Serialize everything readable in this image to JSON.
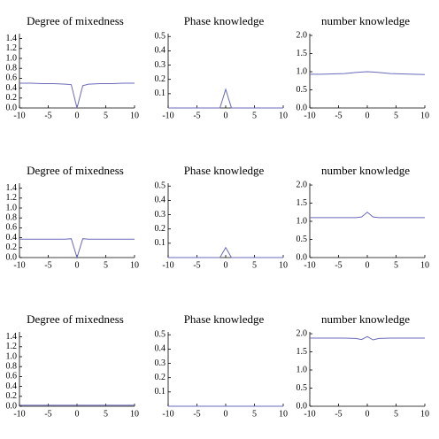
{
  "chart_data": [
    {
      "type": "line",
      "title": "Degree of mixedness",
      "x": [
        -10,
        -8,
        -6,
        -4,
        -2,
        -1,
        0,
        1,
        2,
        4,
        6,
        8,
        10
      ],
      "values": [
        0.5,
        0.5,
        0.49,
        0.49,
        0.48,
        0.47,
        0.0,
        0.45,
        0.48,
        0.49,
        0.49,
        0.5,
        0.5
      ],
      "color": "#6a6ab8",
      "xlim": [
        -10,
        10
      ],
      "ylim": [
        0,
        1.5
      ],
      "xticks": [
        -10,
        -5,
        0,
        5,
        10
      ],
      "yticks": [
        {
          "value": 0,
          "label": "0.0"
        },
        0.2,
        0.4,
        0.6,
        0.8,
        {
          "value": 1,
          "label": "1.0"
        },
        1.2,
        1.4
      ]
    },
    {
      "type": "line",
      "title": "Phase knowledge",
      "x": [
        -10,
        -8,
        -6,
        -4,
        -2,
        -1,
        0,
        1,
        2,
        4,
        6,
        8,
        10
      ],
      "values": [
        0,
        0,
        0,
        0,
        0,
        0,
        0.13,
        0,
        0,
        0,
        0,
        0,
        0
      ],
      "color": "#6a6ab8",
      "xlim": [
        -10,
        10
      ],
      "ylim": [
        0,
        0.52
      ],
      "xticks": [
        -10,
        -5,
        0,
        5,
        10
      ],
      "yticks": [
        0.1,
        0.2,
        0.3,
        0.4,
        0.5
      ]
    },
    {
      "type": "line",
      "title": "number knowledge",
      "x": [
        -10,
        -8,
        -6,
        -4,
        -2,
        -1,
        0,
        1,
        2,
        4,
        6,
        8,
        10
      ],
      "values": [
        0.93,
        0.93,
        0.94,
        0.95,
        0.98,
        0.99,
        1.0,
        0.99,
        0.98,
        0.95,
        0.94,
        0.93,
        0.92
      ],
      "color": "#6a6ab8",
      "xlim": [
        -10,
        10
      ],
      "ylim": [
        0,
        2.05
      ],
      "xticks": [
        -10,
        -5,
        0,
        5,
        10
      ],
      "yticks": [
        {
          "value": 0,
          "label": "0.0"
        },
        0.5,
        {
          "value": 1,
          "label": "1.0"
        },
        1.5,
        {
          "value": 2,
          "label": "2.0"
        }
      ]
    },
    {
      "type": "line",
      "title": "Degree of mixedness",
      "x": [
        -10,
        -8,
        -6,
        -4,
        -2,
        -1,
        0,
        1,
        2,
        4,
        6,
        8,
        10
      ],
      "values": [
        0.37,
        0.37,
        0.37,
        0.37,
        0.37,
        0.38,
        0.0,
        0.38,
        0.37,
        0.37,
        0.37,
        0.37,
        0.37
      ],
      "color": "#6a6ab8",
      "xlim": [
        -10,
        10
      ],
      "ylim": [
        0,
        1.5
      ],
      "xticks": [
        -10,
        -5,
        0,
        5,
        10
      ],
      "yticks": [
        {
          "value": 0,
          "label": "0.0"
        },
        0.2,
        0.4,
        0.6,
        0.8,
        {
          "value": 1,
          "label": "1.0"
        },
        1.2,
        1.4
      ]
    },
    {
      "type": "line",
      "title": "Phase knowledge",
      "x": [
        -10,
        -8,
        -6,
        -4,
        -2,
        -1,
        0,
        1,
        2,
        4,
        6,
        8,
        10
      ],
      "values": [
        0,
        0,
        0,
        0,
        0,
        0,
        0.07,
        0,
        0,
        0,
        0,
        0,
        0
      ],
      "color": "#6a6ab8",
      "xlim": [
        -10,
        10
      ],
      "ylim": [
        0,
        0.52
      ],
      "xticks": [
        -10,
        -5,
        0,
        5,
        10
      ],
      "yticks": [
        0.1,
        0.2,
        0.3,
        0.4,
        0.5
      ]
    },
    {
      "type": "line",
      "title": "number knowledge",
      "x": [
        -10,
        -8,
        -6,
        -4,
        -2,
        -1,
        0,
        1,
        2,
        4,
        6,
        8,
        10
      ],
      "values": [
        1.1,
        1.1,
        1.1,
        1.1,
        1.1,
        1.12,
        1.25,
        1.12,
        1.1,
        1.1,
        1.1,
        1.1,
        1.1
      ],
      "color": "#6a6ab8",
      "xlim": [
        -10,
        10
      ],
      "ylim": [
        0,
        2.05
      ],
      "xticks": [
        -10,
        -5,
        0,
        5,
        10
      ],
      "yticks": [
        {
          "value": 0,
          "label": "0.0"
        },
        0.5,
        {
          "value": 1,
          "label": "1.0"
        },
        1.5,
        {
          "value": 2,
          "label": "2.0"
        }
      ]
    },
    {
      "type": "line",
      "title": "Degree of mixedness",
      "x": [
        -10,
        -8,
        -6,
        -4,
        -2,
        -1,
        0,
        1,
        2,
        4,
        6,
        8,
        10
      ],
      "values": [
        0.02,
        0.02,
        0.02,
        0.02,
        0.02,
        0.02,
        0.02,
        0.02,
        0.02,
        0.02,
        0.02,
        0.02,
        0.02
      ],
      "color": "#6a6ab8",
      "xlim": [
        -10,
        10
      ],
      "ylim": [
        0,
        1.5
      ],
      "xticks": [
        -10,
        -5,
        0,
        5,
        10
      ],
      "yticks": [
        {
          "value": 0,
          "label": "0.0"
        },
        0.2,
        0.4,
        0.6,
        0.8,
        {
          "value": 1,
          "label": "1.0"
        },
        1.2,
        1.4
      ]
    },
    {
      "type": "line",
      "title": "Phase knowledge",
      "x": [
        -10,
        -8,
        -6,
        -4,
        -2,
        -1,
        0,
        1,
        2,
        4,
        6,
        8,
        10
      ],
      "values": [
        0,
        0,
        0,
        0,
        0,
        0,
        0,
        0,
        0,
        0,
        0,
        0,
        0
      ],
      "color": "#6a6ab8",
      "xlim": [
        -10,
        10
      ],
      "ylim": [
        0,
        0.52
      ],
      "xticks": [
        -10,
        -5,
        0,
        5,
        10
      ],
      "yticks": [
        0.1,
        0.2,
        0.3,
        0.4,
        0.5
      ]
    },
    {
      "type": "line",
      "title": "number knowledge",
      "x": [
        -10,
        -8,
        -6,
        -4,
        -2,
        -1,
        0,
        1,
        2,
        4,
        6,
        8,
        10
      ],
      "values": [
        1.88,
        1.88,
        1.88,
        1.88,
        1.87,
        1.84,
        1.92,
        1.83,
        1.87,
        1.88,
        1.88,
        1.88,
        1.88
      ],
      "color": "#6a6ab8",
      "xlim": [
        -10,
        10
      ],
      "ylim": [
        0,
        2.05
      ],
      "xticks": [
        -10,
        -5,
        0,
        5,
        10
      ],
      "yticks": [
        {
          "value": 0,
          "label": "0.0"
        },
        0.5,
        {
          "value": 1,
          "label": "1.0"
        },
        1.5,
        {
          "value": 2,
          "label": "2.0"
        }
      ]
    }
  ]
}
